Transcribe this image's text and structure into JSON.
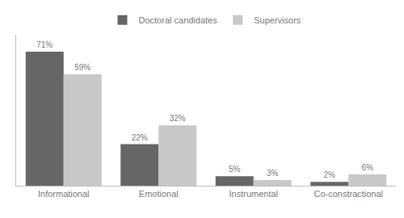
{
  "chart_data": {
    "type": "bar",
    "categories": [
      "Informational",
      "Emotional",
      "Instrumental",
      "Co-constractional"
    ],
    "series": [
      {
        "name": "Doctoral candidates",
        "color": "#666666",
        "values": [
          71,
          22,
          5,
          2
        ],
        "value_labels": [
          "71%",
          "22%",
          "5%",
          "2%"
        ]
      },
      {
        "name": "Supervisors",
        "color": "#c8c8c8",
        "values": [
          59,
          32,
          3,
          6
        ],
        "value_labels": [
          "59%",
          "32%",
          "3%",
          "6%"
        ]
      }
    ],
    "ylim": [
      0,
      80
    ],
    "grid": false,
    "legend": "top",
    "data_labels": true,
    "tick_labels": "x"
  }
}
